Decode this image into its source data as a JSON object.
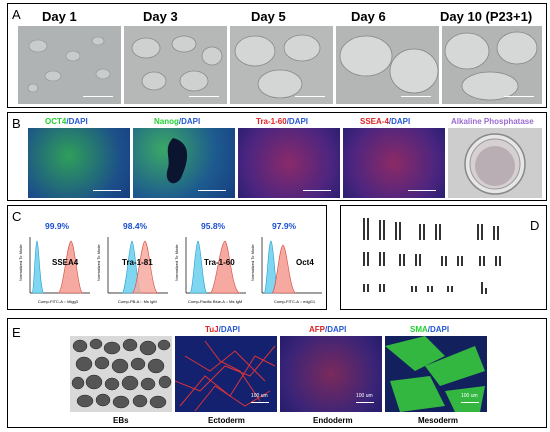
{
  "panels": {
    "A": {
      "label": "A",
      "days": [
        "Day 1",
        "Day 3",
        "Day 5",
        "Day 6",
        "Day 10 (P23+1)"
      ]
    },
    "B": {
      "label": "B",
      "stains": [
        {
          "name": "OCT4",
          "suffix": "/DAPI",
          "color": "#1fd12e"
        },
        {
          "name": "Nanog",
          "suffix": "/DAPI",
          "color": "#1fd12e"
        },
        {
          "name": "Tra-1-60",
          "suffix": "/DAPI",
          "color": "#e02020"
        },
        {
          "name": "SSEA-4",
          "suffix": "/DAPI",
          "color": "#e02020"
        }
      ],
      "ap_label": "Alkaline Phosphatase"
    },
    "C": {
      "label": "C",
      "ylabel": "Normalized To Mode",
      "charts": [
        {
          "pct": "99.9%",
          "marker": "SSEA4",
          "xlabel": "Comp-FITC-A :: Migg3"
        },
        {
          "pct": "98.4%",
          "marker": "Tra-1-81",
          "xlabel": "Comp-PB-A :: Ms IgM"
        },
        {
          "pct": "95.8%",
          "marker": "Tra-1-60",
          "xlabel": "Comp-Pacific Blue-A :: Ms IgM"
        },
        {
          "pct": "97.9%",
          "marker": "Oct4",
          "xlabel": "Comp-FITC-A :: mIgG1"
        }
      ]
    },
    "D": {
      "label": "D"
    },
    "E": {
      "label": "E",
      "eb_label": "EBs",
      "stains": [
        {
          "name": "TuJ",
          "suffix": "/DAPI",
          "color": "#e02020",
          "layer": "Ectoderm"
        },
        {
          "name": "AFP",
          "suffix": "/DAPI",
          "color": "#e02020",
          "layer": "Endoderm"
        },
        {
          "name": "SMA",
          "suffix": "/DAPI",
          "color": "#1fd12e",
          "layer": "Mesoderm"
        }
      ],
      "scale_text": "100 um"
    }
  }
}
